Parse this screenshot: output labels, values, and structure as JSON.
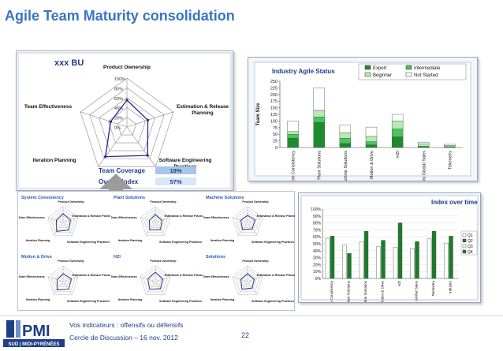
{
  "slide": {
    "title": "Agile Team Maturity consolidation",
    "page_number": "22"
  },
  "bu_panel": {
    "title": "xxx BU",
    "axes": [
      "Product Ownership",
      "Estimation & Release Planning",
      "Software Engineering Practices",
      "Iteration Planning",
      "Team Effectiveness"
    ],
    "rings": [
      "100%",
      "80%",
      "60%",
      "40%",
      "20%",
      "0%"
    ],
    "values": [
      0.55,
      0.45,
      0.72,
      0.75,
      0.35
    ],
    "team_coverage_label": "Team Coverage",
    "team_coverage_value": "19%",
    "overall_index_label": "Overall Index",
    "overall_index_value": "57%"
  },
  "status_panel": {
    "title": "Industry Agile Status",
    "ylabel": "Team Size",
    "yticks": [
      "250",
      "225",
      "200",
      "175",
      "150",
      "125",
      "100",
      "75",
      "50",
      "25",
      "0"
    ],
    "legend": [
      "Expert",
      "Intermediate",
      "Beginner",
      "Not Started"
    ],
    "colors": {
      "expert": "#1f8a2e",
      "intermediate": "#4cc262",
      "beginner": "#b9e8b7",
      "not_started": "#ffffff"
    }
  },
  "small_radars": [
    {
      "name": "System Consistency"
    },
    {
      "name": "Plant Solutions"
    },
    {
      "name": "Machine Solutions"
    },
    {
      "name": "Motion & Drive"
    },
    {
      "name": "HZI"
    },
    {
      "name": "Solutions"
    }
  ],
  "small_radar_labels": {
    "top": "Product Ownership",
    "right": "Estimation & Release Planning",
    "left": "Team Effectiveness",
    "bottom_right": "Software Engineering Practices",
    "bottom_left": "Iteration Planning"
  },
  "index_panel": {
    "title": "Index over time",
    "yticks": [
      "100%",
      "90%",
      "80%",
      "70%",
      "60%",
      "50%",
      "40%",
      "30%",
      "20%",
      "10%",
      "0%"
    ],
    "legend": [
      "Q1",
      "Q2",
      "Q3",
      "Q4"
    ],
    "colors": {
      "q1": "#ffffff",
      "q2": "#1f7a2e",
      "q3": "#ffffff",
      "q4": "#1f7a2e"
    }
  },
  "chart_data": [
    {
      "type": "bar",
      "title": "Industry Agile Status",
      "ylabel": "Team Size",
      "ylim": [
        0,
        250
      ],
      "categories": [
        "System Consistency",
        "Plant Solutions",
        "Machine Solutions",
        "Motion & Drive",
        "HZI",
        "Solutions Global Sales",
        "Telemetry"
      ],
      "series": [
        {
          "name": "Expert",
          "values": [
            35,
            95,
            15,
            10,
            40,
            2,
            1
          ]
        },
        {
          "name": "Intermediate",
          "values": [
            15,
            20,
            20,
            12,
            30,
            3,
            2
          ]
        },
        {
          "name": "Beginner",
          "values": [
            10,
            25,
            20,
            20,
            30,
            8,
            5
          ]
        },
        {
          "name": "Not Started",
          "values": [
            40,
            85,
            30,
            35,
            25,
            7,
            4
          ]
        }
      ]
    },
    {
      "type": "bar",
      "title": "Index over time",
      "ylim": [
        0,
        100
      ],
      "categories": [
        "System Consistency",
        "Plant Solutions",
        "Machine Solutions",
        "Motion & Drive",
        "HZI",
        "Solutions Global Sales",
        "Telemetry",
        "Industry"
      ],
      "series": [
        {
          "name": "Q1",
          "values": [
            58,
            48,
            53,
            46,
            45,
            43,
            57,
            51
          ]
        },
        {
          "name": "Q2",
          "values": [
            61,
            36,
            68,
            55,
            80,
            53,
            68,
            61
          ]
        },
        {
          "name": "Q3",
          "values": [
            0,
            0,
            0,
            0,
            0,
            0,
            0,
            0
          ]
        },
        {
          "name": "Q4",
          "values": [
            0,
            0,
            0,
            0,
            0,
            0,
            0,
            0
          ]
        }
      ]
    }
  ],
  "footer": {
    "line1": "Vos indicateurs : offensifs ou défensifs",
    "line2": "Cercle de Discussion –  16  nov. 2012",
    "logo_text": "PMI",
    "logo_sub": "SUD | MIDI-PYRÉNÉES"
  }
}
